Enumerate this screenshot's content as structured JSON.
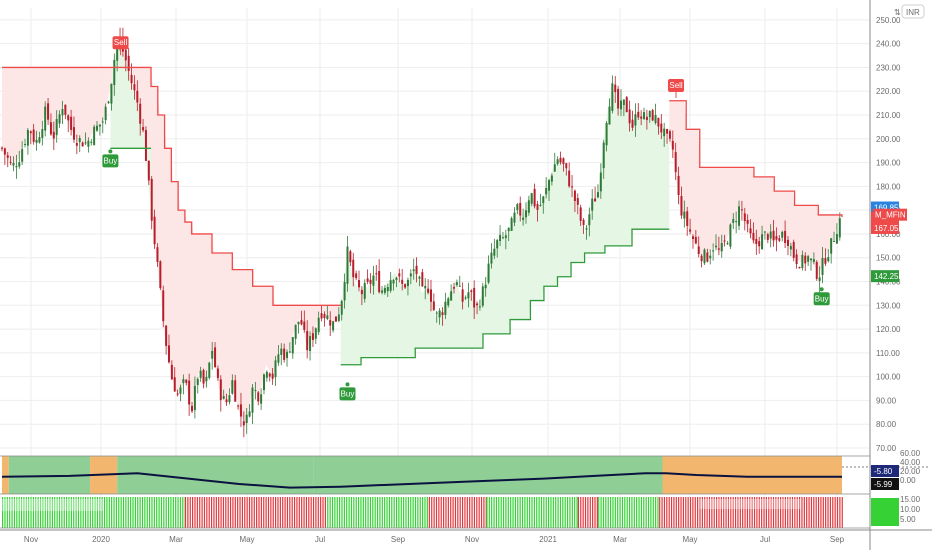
{
  "currency": "INR",
  "scale_toggle": "⇅",
  "chart_data": {
    "type": "candlestick",
    "symbol_tag": "M_MFIN",
    "y_ticks": [
      "250.00",
      "240.00",
      "230.00",
      "220.00",
      "210.00",
      "200.00",
      "190.00",
      "180.00",
      "170.00",
      "160.00",
      "150.00",
      "140.00",
      "130.00",
      "120.00",
      "110.00",
      "100.00",
      "90.00",
      "80.00",
      "70.00"
    ],
    "ylim": [
      70,
      255
    ],
    "x_ticks": [
      "Nov",
      "2020",
      "Mar",
      "May",
      "Jul",
      "Sep",
      "Nov",
      "2021",
      "Mar",
      "May",
      "Jul",
      "Sep"
    ],
    "price_labels": {
      "upper": "169.85",
      "last": "168.10",
      "stop": "167.05",
      "lower": "142.25"
    },
    "signals": [
      {
        "text": "Sell",
        "type": "sell",
        "month": 3.5,
        "price": 236
      },
      {
        "text": "Buy",
        "type": "buy",
        "month": 3.2,
        "price": 196
      },
      {
        "text": "Buy",
        "type": "buy",
        "month": 10.2,
        "price": 98
      },
      {
        "text": "Sell",
        "type": "sell",
        "month": 19.9,
        "price": 218
      },
      {
        "text": "Buy",
        "type": "buy",
        "month": 24.2,
        "price": 138
      }
    ],
    "close": [
      [
        0,
        196
      ],
      [
        0.3,
        188
      ],
      [
        0.5,
        192
      ],
      [
        0.8,
        205
      ],
      [
        1.0,
        198
      ],
      [
        1.3,
        212
      ],
      [
        1.5,
        200
      ],
      [
        1.8,
        215
      ],
      [
        2.0,
        205
      ],
      [
        2.2,
        200
      ],
      [
        2.5,
        198
      ],
      [
        2.7,
        203
      ],
      [
        3.0,
        208
      ],
      [
        3.2,
        222
      ],
      [
        3.4,
        242
      ],
      [
        3.6,
        236
      ],
      [
        3.8,
        225
      ],
      [
        4.0,
        215
      ],
      [
        4.2,
        200
      ],
      [
        4.4,
        170
      ],
      [
        4.6,
        145
      ],
      [
        4.8,
        118
      ],
      [
        5.0,
        100
      ],
      [
        5.2,
        92
      ],
      [
        5.4,
        98
      ],
      [
        5.6,
        86
      ],
      [
        5.8,
        102
      ],
      [
        6.0,
        95
      ],
      [
        6.2,
        112
      ],
      [
        6.4,
        95
      ],
      [
        6.6,
        88
      ],
      [
        6.8,
        98
      ],
      [
        7.0,
        85
      ],
      [
        7.2,
        80
      ],
      [
        7.4,
        95
      ],
      [
        7.6,
        92
      ],
      [
        7.8,
        105
      ],
      [
        8.0,
        100
      ],
      [
        8.2,
        112
      ],
      [
        8.4,
        108
      ],
      [
        8.6,
        118
      ],
      [
        8.8,
        125
      ],
      [
        9.0,
        112
      ],
      [
        9.2,
        118
      ],
      [
        9.4,
        128
      ],
      [
        9.6,
        125
      ],
      [
        9.8,
        122
      ],
      [
        10.0,
        130
      ],
      [
        10.2,
        152
      ],
      [
        10.4,
        140
      ],
      [
        10.6,
        135
      ],
      [
        10.8,
        138
      ],
      [
        11.0,
        143
      ],
      [
        11.2,
        136
      ],
      [
        11.4,
        140
      ],
      [
        11.6,
        144
      ],
      [
        11.8,
        138
      ],
      [
        12.0,
        140
      ],
      [
        12.2,
        146
      ],
      [
        12.4,
        135
      ],
      [
        12.6,
        138
      ],
      [
        12.8,
        125
      ],
      [
        13.0,
        128
      ],
      [
        13.2,
        135
      ],
      [
        13.4,
        140
      ],
      [
        13.6,
        132
      ],
      [
        13.8,
        136
      ],
      [
        14.0,
        128
      ],
      [
        14.2,
        136
      ],
      [
        14.4,
        148
      ],
      [
        14.6,
        156
      ],
      [
        14.8,
        158
      ],
      [
        15.0,
        162
      ],
      [
        15.2,
        170
      ],
      [
        15.4,
        168
      ],
      [
        15.6,
        178
      ],
      [
        15.8,
        170
      ],
      [
        16.0,
        175
      ],
      [
        16.2,
        185
      ],
      [
        16.4,
        192
      ],
      [
        16.6,
        188
      ],
      [
        16.8,
        180
      ],
      [
        17.0,
        170
      ],
      [
        17.2,
        160
      ],
      [
        17.4,
        172
      ],
      [
        17.6,
        178
      ],
      [
        17.8,
        205
      ],
      [
        18.0,
        222
      ],
      [
        18.2,
        212
      ],
      [
        18.4,
        215
      ],
      [
        18.6,
        205
      ],
      [
        18.8,
        212
      ],
      [
        19.0,
        208
      ],
      [
        19.2,
        210
      ],
      [
        19.4,
        206
      ],
      [
        19.6,
        200
      ],
      [
        19.8,
        196
      ],
      [
        20.0,
        172
      ],
      [
        20.2,
        165
      ],
      [
        20.4,
        158
      ],
      [
        20.6,
        152
      ],
      [
        20.8,
        150
      ],
      [
        21.0,
        155
      ],
      [
        21.2,
        152
      ],
      [
        21.4,
        158
      ],
      [
        21.6,
        165
      ],
      [
        21.8,
        172
      ],
      [
        22.0,
        162
      ],
      [
        22.2,
        155
      ],
      [
        22.4,
        158
      ],
      [
        22.6,
        160
      ],
      [
        22.8,
        156
      ],
      [
        23.0,
        160
      ],
      [
        23.2,
        158
      ],
      [
        23.4,
        150
      ],
      [
        23.6,
        148
      ],
      [
        23.8,
        150
      ],
      [
        24.0,
        146
      ],
      [
        24.1,
        142
      ],
      [
        24.3,
        150
      ],
      [
        24.5,
        156
      ],
      [
        24.7,
        165
      ],
      [
        24.8,
        168.1
      ]
    ],
    "sar_red": [
      [
        0,
        230
      ],
      [
        4.2,
        230
      ],
      [
        4.4,
        222
      ],
      [
        4.6,
        210
      ],
      [
        4.8,
        196
      ],
      [
        5.0,
        182
      ],
      [
        5.2,
        170
      ],
      [
        5.4,
        165
      ],
      [
        5.6,
        160
      ],
      [
        6.0,
        160
      ],
      [
        6.2,
        152
      ],
      [
        6.6,
        152
      ],
      [
        6.8,
        145
      ],
      [
        7.2,
        145
      ],
      [
        7.4,
        138
      ],
      [
        7.8,
        138
      ],
      [
        8.0,
        130
      ],
      [
        10.0,
        130
      ]
    ],
    "sar_green_1": [
      [
        3.2,
        196
      ],
      [
        4.4,
        196
      ]
    ],
    "sar_green_2": [
      [
        10.0,
        105
      ],
      [
        10.6,
        108
      ],
      [
        11.6,
        108
      ],
      [
        12.2,
        112
      ],
      [
        13.6,
        112
      ],
      [
        14.2,
        118
      ],
      [
        15.0,
        124
      ],
      [
        15.6,
        132
      ],
      [
        16.0,
        138
      ],
      [
        16.4,
        142
      ],
      [
        16.8,
        148
      ],
      [
        17.2,
        152
      ],
      [
        17.8,
        155
      ],
      [
        18.6,
        162
      ],
      [
        19.7,
        162
      ]
    ],
    "sar_red_2": [
      [
        19.7,
        216
      ],
      [
        20.2,
        204
      ],
      [
        20.6,
        188
      ],
      [
        21.6,
        188
      ],
      [
        22.2,
        184
      ],
      [
        22.8,
        178
      ],
      [
        23.4,
        172
      ],
      [
        24.1,
        168
      ],
      [
        24.8,
        167.05
      ]
    ],
    "oscillator": {
      "y_ticks": [
        "60.00",
        "40.00",
        "20.00",
        "0.00"
      ],
      "labels": [
        "-5.80",
        "-5.99"
      ],
      "background_bands": [
        {
          "from": 0,
          "to": 0.2,
          "color": "#f2b66e"
        },
        {
          "from": 0.2,
          "to": 2.6,
          "color": "#8fce95"
        },
        {
          "from": 2.6,
          "to": 3.4,
          "color": "#f2b66e"
        },
        {
          "from": 3.4,
          "to": 9.2,
          "color": "#8fce95"
        },
        {
          "from": 9.2,
          "to": 19.5,
          "color": "#8fce95"
        },
        {
          "from": 19.5,
          "to": 24.8,
          "color": "#f2b66e"
        }
      ],
      "line": [
        [
          0,
          -2
        ],
        [
          2,
          -1
        ],
        [
          4,
          2
        ],
        [
          5.5,
          -4
        ],
        [
          7,
          -10
        ],
        [
          8.5,
          -14
        ],
        [
          10,
          -13
        ],
        [
          12,
          -10
        ],
        [
          14,
          -7
        ],
        [
          16,
          -4
        ],
        [
          17.5,
          -1
        ],
        [
          19,
          2
        ],
        [
          19.6,
          2
        ],
        [
          20.5,
          0
        ],
        [
          22,
          -2
        ],
        [
          24.8,
          -2
        ]
      ]
    },
    "histogram": {
      "y_ticks": [
        "15.00",
        "10.00",
        "5.00"
      ],
      "bands": [
        {
          "from": 0,
          "to": 5.4,
          "color": "#35d135"
        },
        {
          "from": 5.4,
          "to": 9.6,
          "color": "#e0383e"
        },
        {
          "from": 9.6,
          "to": 12.6,
          "color": "#35d135"
        },
        {
          "from": 12.6,
          "to": 14.3,
          "color": "#e0383e"
        },
        {
          "from": 14.3,
          "to": 17.0,
          "color": "#35d135"
        },
        {
          "from": 17.0,
          "to": 17.6,
          "color": "#e0383e"
        },
        {
          "from": 17.6,
          "to": 19.4,
          "color": "#35d135"
        },
        {
          "from": 19.4,
          "to": 24.8,
          "color": "#e0383e"
        }
      ]
    }
  },
  "colors": {
    "sell": "#ef4a4a",
    "buy": "#2f9a3a",
    "red_fill": "#fde3e3",
    "green_fill": "#e2f5e2",
    "candle_up": "#2f7a38",
    "candle_down": "#b51e2a",
    "grid": "#eeeeee",
    "axis_border": "#8a8a8a",
    "tag_red": "#ef4a4a",
    "tag_blue": "#2b83e0",
    "tag_green": "#2f9a3a",
    "tag_black": "#111111",
    "tag_navy": "#1e2a78"
  }
}
